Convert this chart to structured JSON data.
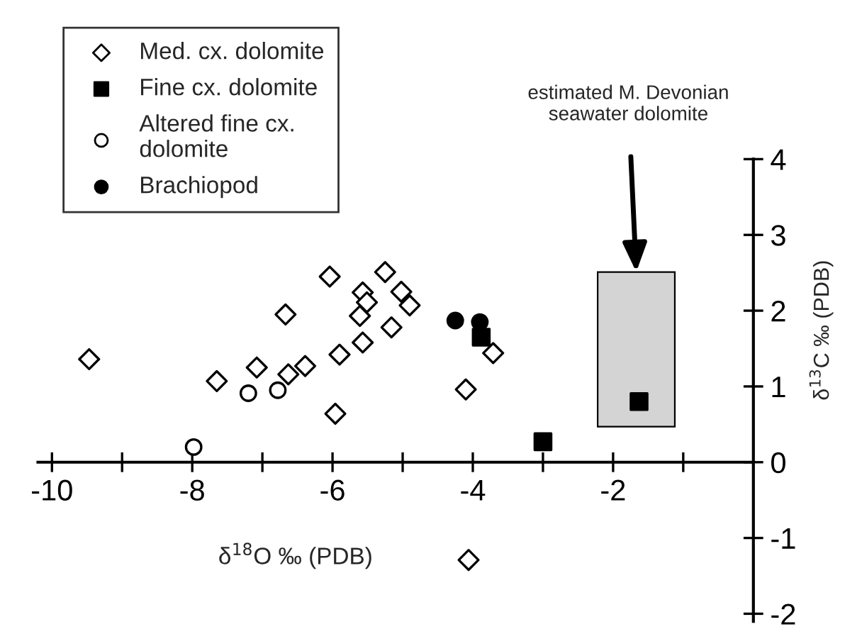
{
  "chart_data": {
    "type": "scatter",
    "xlabel": "δ$^{18}$O ‰ (PDB)",
    "ylabel": "δ$^{13}$C ‰ (PDB)",
    "xlim": [
      -10.2,
      0
    ],
    "ylim": [
      -2.1,
      4
    ],
    "xticks": [
      -10,
      {
        "value": -9,
        "label": null
      },
      -8,
      {
        "value": -7,
        "label": null
      },
      -6,
      {
        "value": -5,
        "label": null
      },
      -4,
      {
        "value": -3,
        "label": null
      },
      -2,
      {
        "value": -1,
        "label": null
      }
    ],
    "yticks": [
      -2,
      -1,
      0,
      1,
      2,
      3,
      4
    ],
    "grid": false,
    "legend": "top left",
    "series": [
      {
        "type": "bar",
        "x": [
          -1.67
        ],
        "base": [
          0.47
        ],
        "values": [
          2.04
        ],
        "color": "#d4d4d4"
      },
      {
        "name": "Med. cx. dolomite",
        "marker": "diamond",
        "color": "#ffffff",
        "x": [
          -9.47,
          -7.65,
          -7.08,
          -6.63,
          -6.39,
          -6.67,
          -6.04,
          -5.96,
          -5.9,
          -5.57,
          -5.51,
          -5.61,
          -5.57,
          -5.25,
          -5.16,
          -5.02,
          -4.9,
          -3.71,
          -4.1,
          -4.06
        ],
        "values": [
          1.36,
          1.07,
          1.25,
          1.16,
          1.27,
          1.95,
          2.45,
          0.64,
          1.42,
          2.24,
          2.11,
          1.93,
          1.58,
          2.51,
          1.78,
          2.25,
          2.07,
          1.44,
          0.96,
          -1.29
        ]
      },
      {
        "name": "Fine cx. dolomite",
        "marker": "square",
        "color": "#000000",
        "x": [
          -3.88,
          -3.0,
          -1.63
        ],
        "values": [
          1.65,
          0.27,
          0.8
        ]
      },
      {
        "name": "Altered fine cx.\ndolomite",
        "marker": "circle",
        "color": "#ffffff",
        "x": [
          -7.2,
          -6.78,
          -7.98
        ],
        "values": [
          0.91,
          0.95,
          0.2
        ]
      },
      {
        "name": "Brachiopod",
        "marker": "circle",
        "color": "#000000",
        "x": [
          -4.25,
          -3.9
        ],
        "values": [
          1.87,
          1.85
        ]
      }
    ],
    "annotations": [
      "estimated M. Devonian\nseawater dolomite"
    ]
  }
}
